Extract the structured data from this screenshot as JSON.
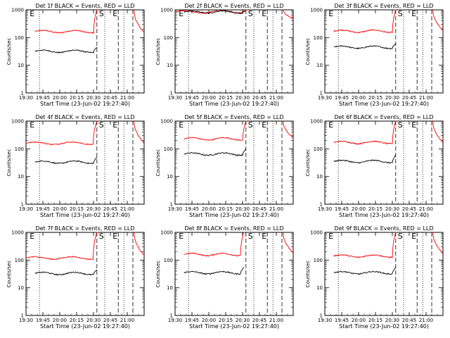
{
  "chart_data": [
    {
      "type": "line",
      "title": "Det 1f BLACK = Events, RED = LLD",
      "ylabel": "Counts/sec",
      "xlabel": "Start Time (23-Jun-02 19:27:40)",
      "yscale": "log",
      "ylim": [
        1,
        1000
      ],
      "ytick_labels": [
        "1",
        "10",
        "100",
        "1000"
      ],
      "xlim_hours": [
        19.5,
        21.25
      ],
      "xtick_labels": [
        "19:30",
        "19:45",
        "20:00",
        "20:15",
        "20:30",
        "20:45",
        "21:00"
      ],
      "marker_labels": [
        "E",
        "S",
        "E"
      ],
      "vlines_dotted": [
        "19:42",
        "20:40",
        "20:57"
      ],
      "vlines_dashed": [
        "20:33",
        "20:52",
        "21:05"
      ],
      "series": [
        {
          "color": "#ff0000",
          "segments": [
            {
              "x_start": "19:38",
              "x_end": "20:33",
              "level": 165
            }
          ],
          "rise_to": 1000,
          "spike_at": "21:06",
          "tail_end": 150
        },
        {
          "color": "#000000",
          "segments": [
            {
              "x_start": "19:38",
              "x_end": "20:33",
              "level": 32
            }
          ],
          "rise_to": 45
        }
      ]
    },
    {
      "type": "line",
      "title": "Det 2f BLACK = Events, RED = LLD",
      "ylabel": "Counts/sec",
      "xlabel": "Start Time (23-Jun-02 19:27:40)",
      "yscale": "log",
      "ylim": [
        1,
        1000
      ],
      "ytick_labels": [
        "1",
        "10",
        "100",
        "1000"
      ],
      "xlim_hours": [
        19.5,
        21.25
      ],
      "xtick_labels": [
        "19:30",
        "19:45",
        "20:00",
        "20:15",
        "20:30",
        "20:45",
        "21:00"
      ],
      "marker_labels": [
        "E",
        "S",
        "E"
      ],
      "vlines_dotted": [
        "19:42",
        "20:40",
        "20:57"
      ],
      "vlines_dashed": [
        "20:33",
        "20:52",
        "21:05"
      ],
      "series": [
        {
          "color": "#ff0000",
          "segments": [
            {
              "x_start": "19:30",
              "x_end": "20:33",
              "level": 850
            }
          ],
          "rise_to": 1000,
          "spike_at": "21:06",
          "tail_end": 500
        },
        {
          "color": "#000000",
          "segments": [
            {
              "x_start": "19:38",
              "x_end": "20:33",
              "level": 840
            }
          ],
          "rise_to": 900
        }
      ]
    },
    {
      "type": "line",
      "title": "Det 3f BLACK = Events, RED = LLD",
      "ylabel": "Counts/sec",
      "xlabel": "Start Time (23-Jun-02 19:27:40)",
      "yscale": "log",
      "ylim": [
        1,
        1000
      ],
      "ytick_labels": [
        "1",
        "10",
        "100",
        "1000"
      ],
      "xlim_hours": [
        19.5,
        21.25
      ],
      "xtick_labels": [
        "19:30",
        "19:45",
        "20:00",
        "20:15",
        "20:30",
        "20:45",
        "21:00"
      ],
      "marker_labels": [
        "E",
        "S",
        "E"
      ],
      "vlines_dotted": [
        "19:42",
        "20:40",
        "20:57"
      ],
      "vlines_dashed": [
        "20:33",
        "20:52",
        "21:05"
      ],
      "series": [
        {
          "color": "#ff0000",
          "segments": [
            {
              "x_start": "19:38",
              "x_end": "20:33",
              "level": 170
            }
          ],
          "rise_to": 1000,
          "spike_at": "21:06",
          "tail_end": 180
        },
        {
          "color": "#000000",
          "segments": [
            {
              "x_start": "19:38",
              "x_end": "20:33",
              "level": 45
            }
          ],
          "rise_to": 60
        }
      ]
    },
    {
      "type": "line",
      "title": "Det 4f BLACK = Events, RED = LLD",
      "ylabel": "Counts/sec",
      "xlabel": "Start Time (23-Jun-02 19:27:40)",
      "yscale": "log",
      "ylim": [
        1,
        1000
      ],
      "ytick_labels": [
        "1",
        "10",
        "100",
        "1000"
      ],
      "xlim_hours": [
        19.5,
        21.25
      ],
      "xtick_labels": [
        "19:30",
        "19:45",
        "20:00",
        "20:15",
        "20:30",
        "20:45",
        "21:00"
      ],
      "marker_labels": [
        "E",
        "S",
        "E"
      ],
      "vlines_dotted": [
        "19:42",
        "20:40",
        "20:57"
      ],
      "vlines_dashed": [
        "20:33",
        "20:52",
        "21:05"
      ],
      "series": [
        {
          "color": "#ff0000",
          "segments": [
            {
              "x_start": "19:30",
              "x_end": "20:33",
              "level": 160
            }
          ],
          "rise_to": 1000,
          "spike_at": "21:06",
          "tail_end": 160
        },
        {
          "color": "#000000",
          "segments": [
            {
              "x_start": "19:38",
              "x_end": "20:33",
              "level": 33
            }
          ],
          "rise_to": 50
        }
      ]
    },
    {
      "type": "line",
      "title": "Det 5f BLACK = Events, RED = LLD",
      "ylabel": "Counts/sec",
      "xlabel": "Start Time (23-Jun-02 19:27:40)",
      "yscale": "log",
      "ylim": [
        1,
        1000
      ],
      "ytick_labels": [
        "1",
        "10",
        "100",
        "1000"
      ],
      "xlim_hours": [
        19.5,
        21.25
      ],
      "xtick_labels": [
        "19:30",
        "19:45",
        "20:00",
        "20:15",
        "20:30",
        "20:45",
        "21:00"
      ],
      "marker_labels": [
        "E",
        "S",
        "E"
      ],
      "vlines_dotted": [
        "19:42",
        "20:40",
        "20:57"
      ],
      "vlines_dashed": [
        "20:33",
        "20:52",
        "21:05"
      ],
      "series": [
        {
          "color": "#ff0000",
          "segments": [
            {
              "x_start": "19:38",
              "x_end": "20:33",
              "level": 230
            }
          ],
          "rise_to": 1000,
          "spike_at": "21:06",
          "tail_end": 250
        },
        {
          "color": "#000000",
          "segments": [
            {
              "x_start": "19:38",
              "x_end": "20:33",
              "level": 65
            }
          ],
          "rise_to": 100
        }
      ]
    },
    {
      "type": "line",
      "title": "Det 6f BLACK = Events, RED = LLD",
      "ylabel": "Counts/sec",
      "xlabel": "Start Time (23-Jun-02 19:27:40)",
      "yscale": "log",
      "ylim": [
        1,
        1000
      ],
      "ytick_labels": [
        "1",
        "10",
        "100",
        "1000"
      ],
      "xlim_hours": [
        19.5,
        21.25
      ],
      "xtick_labels": [
        "19:30",
        "19:45",
        "20:00",
        "20:15",
        "20:30",
        "20:45",
        "21:00"
      ],
      "marker_labels": [
        "E",
        "S",
        "E"
      ],
      "vlines_dotted": [
        "19:42",
        "20:40",
        "20:57"
      ],
      "vlines_dashed": [
        "20:33",
        "20:52",
        "21:05"
      ],
      "series": [
        {
          "color": "#ff0000",
          "segments": [
            {
              "x_start": "19:38",
              "x_end": "20:33",
              "level": 170
            }
          ],
          "rise_to": 1000,
          "spike_at": "21:06",
          "tail_end": 170
        },
        {
          "color": "#000000",
          "segments": [
            {
              "x_start": "19:38",
              "x_end": "20:33",
              "level": 35
            }
          ],
          "rise_to": 60
        }
      ]
    },
    {
      "type": "line",
      "title": "Det 7f BLACK = Events, RED = LLD",
      "ylabel": "Counts/sec",
      "xlabel": "Start Time (23-Jun-02 19:27:40)",
      "yscale": "log",
      "ylim": [
        1,
        1000
      ],
      "ytick_labels": [
        "1",
        "10",
        "100",
        "1000"
      ],
      "xlim_hours": [
        19.5,
        21.25
      ],
      "xtick_labels": [
        "19:30",
        "19:45",
        "20:00",
        "20:15",
        "20:30",
        "20:45",
        "21:00"
      ],
      "marker_labels": [
        "E",
        "S",
        "E"
      ],
      "vlines_dotted": [
        "19:42",
        "20:40",
        "20:57"
      ],
      "vlines_dashed": [
        "20:33",
        "20:52",
        "21:05"
      ],
      "series": [
        {
          "color": "#ff0000",
          "segments": [
            {
              "x_start": "19:30",
              "x_end": "20:33",
              "level": 120
            }
          ],
          "rise_to": 1000,
          "spike_at": "21:06",
          "tail_end": 150
        },
        {
          "color": "#000000",
          "segments": [
            {
              "x_start": "19:38",
              "x_end": "20:33",
              "level": 33
            }
          ],
          "rise_to": 45
        }
      ]
    },
    {
      "type": "line",
      "title": "Det 8f BLACK = Events, RED = LLD",
      "ylabel": "Counts/sec",
      "xlabel": "Start Time (23-Jun-02 19:27:40)",
      "yscale": "log",
      "ylim": [
        1,
        1000
      ],
      "ytick_labels": [
        "1",
        "10",
        "100",
        "1000"
      ],
      "xlim_hours": [
        19.5,
        21.25
      ],
      "xtick_labels": [
        "19:30",
        "19:45",
        "20:00",
        "20:15",
        "20:30",
        "20:45",
        "21:00"
      ],
      "marker_labels": [
        "E",
        "S",
        "E"
      ],
      "vlines_dotted": [
        "19:42",
        "20:40",
        "20:57"
      ],
      "vlines_dashed": [
        "20:33",
        "20:52",
        "21:05"
      ],
      "series": [
        {
          "color": "#ff0000",
          "segments": [
            {
              "x_start": "19:38",
              "x_end": "20:31",
              "level": 160
            }
          ],
          "rise_to": 1000,
          "spike_at": "21:06",
          "tail_end": 180
        },
        {
          "color": "#000000",
          "segments": [
            {
              "x_start": "19:38",
              "x_end": "20:31",
              "level": 35
            }
          ],
          "rise_to": 55
        }
      ]
    },
    {
      "type": "line",
      "title": "Det 9f BLACK = Events, RED = LLD",
      "ylabel": "Counts/sec",
      "xlabel": "Start Time (23-Jun-02 19:27:40)",
      "yscale": "log",
      "ylim": [
        1,
        1000
      ],
      "ytick_labels": [
        "1",
        "10",
        "100",
        "1000"
      ],
      "xlim_hours": [
        19.5,
        21.25
      ],
      "xtick_labels": [
        "19:30",
        "19:45",
        "20:00",
        "20:15",
        "20:30",
        "20:45",
        "21:00"
      ],
      "marker_labels": [
        "E",
        "S",
        "E"
      ],
      "vlines_dotted": [
        "19:42",
        "20:40",
        "20:57"
      ],
      "vlines_dashed": [
        "20:33",
        "20:52",
        "21:05"
      ],
      "series": [
        {
          "color": "#ff0000",
          "segments": [
            {
              "x_start": "19:38",
              "x_end": "20:33",
              "level": 140
            }
          ],
          "rise_to": 1000,
          "spike_at": "21:06",
          "tail_end": 170
        },
        {
          "color": "#000000",
          "segments": [
            {
              "x_start": "19:38",
              "x_end": "20:33",
              "level": 35
            }
          ],
          "rise_to": 55
        }
      ]
    }
  ]
}
